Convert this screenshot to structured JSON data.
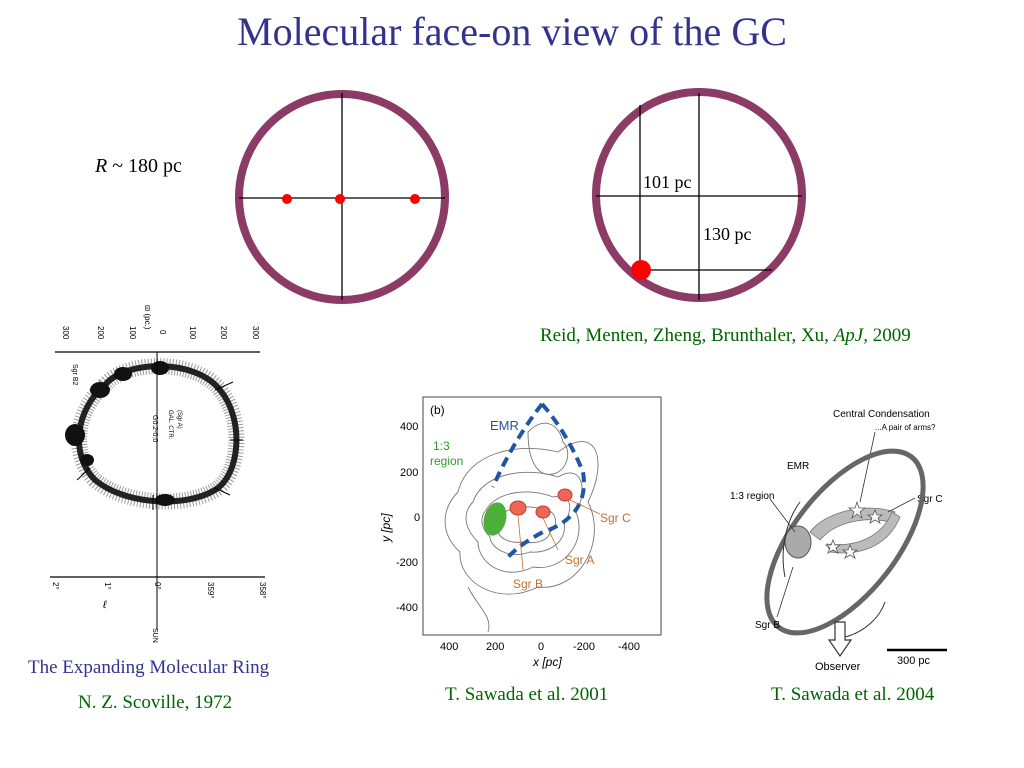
{
  "slide": {
    "title": "Molecular face-on view of the GC",
    "radius_label": {
      "var": "R",
      "rest": " ~ 180 pc"
    },
    "dist_101": "101 pc",
    "dist_130": "130 pc",
    "reid_citation": {
      "authors": "Reid, Menten, Zheng, Brunthaler, Xu, ",
      "journal": "ApJ,",
      "year": " 2009"
    },
    "scoville_title": "The Expanding Molecular Ring",
    "scoville_citation": "N. Z. Scoville, 1972",
    "sawada2001_citation": "T. Sawada et al. 2001",
    "sawada2004_citation": "T. Sawada et al. 2004"
  },
  "scoville_fig": {
    "top_axis_label": "ϖ (pc.)",
    "top_ticks": [
      "300",
      "200",
      "100",
      "0",
      "100",
      "200",
      "300"
    ],
    "labels": {
      "sgrb2": "Sgr B2",
      "g02": "G0.2-0.0",
      "galctr": "GAL. CTR.",
      "sgra": "(Sgr A)"
    },
    "bottom_ticks": [
      "2°",
      "1°",
      "0°",
      "359°",
      "358°"
    ],
    "bottom_axis_label": "ℓ",
    "sun_label": "SUN"
  },
  "sawada2001_fig": {
    "panel_label": "(b)",
    "y_ticks": [
      "400",
      "200",
      "0",
      "-200",
      "-400"
    ],
    "x_ticks": [
      "400",
      "200",
      "0",
      "-200",
      "-400"
    ],
    "ylabel": "y [pc]",
    "xlabel": "x [pc]",
    "labels": {
      "emr": "EMR",
      "region_1": "1:3",
      "region_2": "region",
      "sgrc": "Sgr C",
      "sgra": "Sgr A",
      "sgrb": "Sgr B"
    }
  },
  "sawada2004_fig": {
    "labels": {
      "central": "Central Condensation",
      "arms": "...A pair of arms?",
      "emr": "EMR",
      "region": "1:3 region",
      "sgrc": "Sgr C",
      "sgrb": "Sgr B",
      "observer": "Observer",
      "scalebar": "300 pc"
    }
  },
  "colors": {
    "ring": "#8c3a66",
    "title": "#33338f",
    "caption_green": "#006400",
    "marker": "#ff0000"
  }
}
